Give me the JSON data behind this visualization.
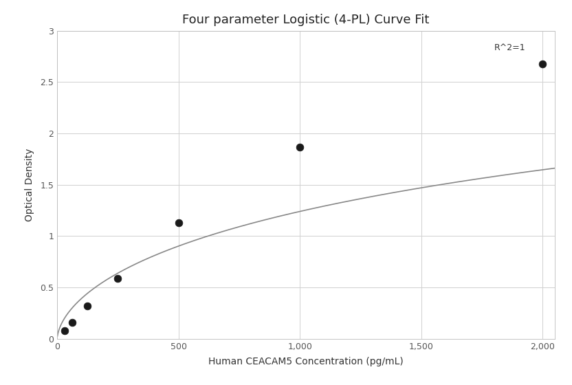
{
  "title": "Four parameter Logistic (4-PL) Curve Fit",
  "xlabel": "Human CEACAM5 Concentration (pg/mL)",
  "ylabel": "Optical Density",
  "x_data": [
    31.25,
    62.5,
    125,
    250,
    500,
    1000,
    2000
  ],
  "y_data": [
    0.08,
    0.16,
    0.32,
    0.59,
    1.13,
    1.87,
    2.68
  ],
  "xlim": [
    0,
    2050
  ],
  "ylim": [
    0,
    3.0
  ],
  "xticks": [
    0,
    500,
    1000,
    1500,
    2000
  ],
  "xtick_labels": [
    "0",
    "500",
    "1,000",
    "1,500",
    "2,000"
  ],
  "yticks": [
    0,
    0.5,
    1.0,
    1.5,
    2.0,
    2.5,
    3.0
  ],
  "ytick_labels": [
    "0",
    "0.5",
    "1",
    "1.5",
    "2",
    "2.5",
    "3"
  ],
  "r_squared_label": "R^2=1",
  "r_squared_x": 1800,
  "r_squared_y": 2.79,
  "dot_color": "#1a1a1a",
  "line_color": "#888888",
  "dot_size": 60,
  "background_color": "#ffffff",
  "grid_color": "#d0d0d0",
  "title_fontsize": 13,
  "label_fontsize": 10,
  "tick_fontsize": 9,
  "annotation_fontsize": 9,
  "fig_width": 8.32,
  "fig_height": 5.6
}
